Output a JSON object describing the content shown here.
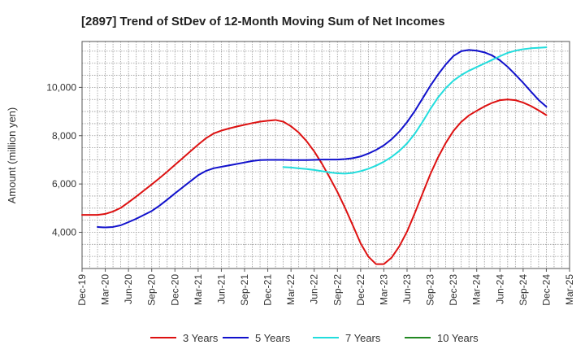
{
  "chart_data": {
    "type": "line",
    "title": "[2897]  Trend of StDev of 12-Month Moving Sum of Net Incomes",
    "xlabel": "",
    "ylabel": "Amount (million yen)",
    "ylim": [
      2500,
      11900
    ],
    "yticks": [
      4000,
      6000,
      8000,
      10000
    ],
    "ytick_labels": [
      "4,000",
      "6,000",
      "8,000",
      "10,000"
    ],
    "x_tick_labels": [
      "Dec-19",
      "Mar-20",
      "Jun-20",
      "Sep-20",
      "Dec-20",
      "Mar-21",
      "Jun-21",
      "Sep-21",
      "Dec-21",
      "Mar-22",
      "Jun-22",
      "Sep-22",
      "Dec-22",
      "Mar-23",
      "Jun-23",
      "Sep-23",
      "Dec-23",
      "Mar-24",
      "Jun-24",
      "Sep-24",
      "Dec-24",
      "Mar-25"
    ],
    "grid": true,
    "legend_position": "bottom",
    "series": [
      {
        "name": "3 Years",
        "color": "#dd1111",
        "points": [
          [
            "Dec-19",
            4720
          ],
          [
            "Jan-20",
            4720
          ],
          [
            "Feb-20",
            4720
          ],
          [
            "Mar-20",
            4760
          ],
          [
            "Apr-20",
            4860
          ],
          [
            "May-20",
            5010
          ],
          [
            "Jun-20",
            5240
          ],
          [
            "Jul-20",
            5480
          ],
          [
            "Aug-20",
            5730
          ],
          [
            "Sep-20",
            5980
          ],
          [
            "Oct-20",
            6240
          ],
          [
            "Nov-20",
            6510
          ],
          [
            "Dec-20",
            6790
          ],
          [
            "Jan-21",
            7070
          ],
          [
            "Feb-21",
            7350
          ],
          [
            "Mar-21",
            7630
          ],
          [
            "Apr-21",
            7890
          ],
          [
            "May-21",
            8090
          ],
          [
            "Jun-21",
            8210
          ],
          [
            "Jul-21",
            8300
          ],
          [
            "Aug-21",
            8380
          ],
          [
            "Sep-21",
            8450
          ],
          [
            "Oct-21",
            8520
          ],
          [
            "Nov-21",
            8580
          ],
          [
            "Dec-21",
            8620
          ],
          [
            "Jan-22",
            8650
          ],
          [
            "Feb-22",
            8580
          ],
          [
            "Mar-22",
            8390
          ],
          [
            "Apr-22",
            8130
          ],
          [
            "May-22",
            7780
          ],
          [
            "Jun-22",
            7350
          ],
          [
            "Jul-22",
            6840
          ],
          [
            "Aug-22",
            6270
          ],
          [
            "Sep-22",
            5670
          ],
          [
            "Oct-22",
            5000
          ],
          [
            "Nov-22",
            4280
          ],
          [
            "Dec-22",
            3540
          ],
          [
            "Jan-23",
            2990
          ],
          [
            "Feb-23",
            2680
          ],
          [
            "Mar-23",
            2680
          ],
          [
            "Apr-23",
            2950
          ],
          [
            "May-23",
            3420
          ],
          [
            "Jun-23",
            4030
          ],
          [
            "Jul-23",
            4790
          ],
          [
            "Aug-23",
            5600
          ],
          [
            "Sep-23",
            6400
          ],
          [
            "Oct-23",
            7100
          ],
          [
            "Nov-23",
            7700
          ],
          [
            "Dec-23",
            8200
          ],
          [
            "Jan-24",
            8570
          ],
          [
            "Feb-24",
            8840
          ],
          [
            "Mar-24",
            9030
          ],
          [
            "Apr-24",
            9210
          ],
          [
            "May-24",
            9360
          ],
          [
            "Jun-24",
            9470
          ],
          [
            "Jul-24",
            9500
          ],
          [
            "Aug-24",
            9470
          ],
          [
            "Sep-24",
            9370
          ],
          [
            "Oct-24",
            9230
          ],
          [
            "Nov-24",
            9050
          ],
          [
            "Dec-24",
            8850
          ]
        ]
      },
      {
        "name": "5 Years",
        "color": "#1111cc",
        "points": [
          [
            "Feb-20",
            4220
          ],
          [
            "Mar-20",
            4200
          ],
          [
            "Apr-20",
            4220
          ],
          [
            "May-20",
            4290
          ],
          [
            "Jun-20",
            4420
          ],
          [
            "Jul-20",
            4560
          ],
          [
            "Aug-20",
            4720
          ],
          [
            "Sep-20",
            4880
          ],
          [
            "Oct-20",
            5100
          ],
          [
            "Nov-20",
            5350
          ],
          [
            "Dec-20",
            5610
          ],
          [
            "Jan-21",
            5860
          ],
          [
            "Feb-21",
            6110
          ],
          [
            "Mar-21",
            6360
          ],
          [
            "Apr-21",
            6540
          ],
          [
            "May-21",
            6650
          ],
          [
            "Jun-21",
            6710
          ],
          [
            "Jul-21",
            6770
          ],
          [
            "Aug-21",
            6830
          ],
          [
            "Sep-21",
            6890
          ],
          [
            "Oct-21",
            6950
          ],
          [
            "Nov-21",
            6990
          ],
          [
            "Dec-21",
            7000
          ],
          [
            "Jan-22",
            7000
          ],
          [
            "Feb-22",
            7000
          ],
          [
            "Mar-22",
            6990
          ],
          [
            "Apr-22",
            6990
          ],
          [
            "May-22",
            6990
          ],
          [
            "Jun-22",
            7000
          ],
          [
            "Jul-22",
            7010
          ],
          [
            "Aug-22",
            7010
          ],
          [
            "Sep-22",
            7010
          ],
          [
            "Oct-22",
            7030
          ],
          [
            "Nov-22",
            7070
          ],
          [
            "Dec-22",
            7140
          ],
          [
            "Jan-23",
            7260
          ],
          [
            "Feb-23",
            7410
          ],
          [
            "Mar-23",
            7600
          ],
          [
            "Apr-23",
            7850
          ],
          [
            "May-23",
            8170
          ],
          [
            "Jun-23",
            8560
          ],
          [
            "Jul-23",
            9020
          ],
          [
            "Aug-23",
            9540
          ],
          [
            "Sep-23",
            10060
          ],
          [
            "Oct-23,10",
            10530
          ],
          [
            "Nov-23",
            10950
          ],
          [
            "Dec-23",
            11300
          ],
          [
            "Jan-24",
            11500
          ],
          [
            "Feb-24",
            11550
          ],
          [
            "Mar-24",
            11520
          ],
          [
            "Apr-24",
            11450
          ],
          [
            "May-24",
            11320
          ],
          [
            "Jun-24",
            11120
          ],
          [
            "Jul-24",
            10850
          ],
          [
            "Aug-24",
            10530
          ],
          [
            "Sep-24",
            10190
          ],
          [
            "Oct-24",
            9830
          ],
          [
            "Nov-24",
            9480
          ],
          [
            "Dec-24",
            9200
          ]
        ]
      },
      {
        "name": "7 Years",
        "color": "#22dddd",
        "points": [
          [
            "Feb-22",
            6700
          ],
          [
            "Mar-22",
            6680
          ],
          [
            "Apr-22",
            6650
          ],
          [
            "May-22",
            6620
          ],
          [
            "Jun-22",
            6580
          ],
          [
            "Jul-22",
            6530
          ],
          [
            "Aug-22",
            6480
          ],
          [
            "Sep-22",
            6440
          ],
          [
            "Oct-22",
            6430
          ],
          [
            "Nov-22",
            6460
          ],
          [
            "Dec-22",
            6530
          ],
          [
            "Jan-23",
            6630
          ],
          [
            "Feb-23",
            6760
          ],
          [
            "Mar-23",
            6920
          ],
          [
            "Apr-23",
            7120
          ],
          [
            "May-23",
            7370
          ],
          [
            "Jun-23",
            7680
          ],
          [
            "Jul-23",
            8080
          ],
          [
            "Aug-23",
            8570
          ],
          [
            "Sep-23",
            9100
          ],
          [
            "Oct-23",
            9580
          ],
          [
            "Nov-23",
            9970
          ],
          [
            "Dec-23",
            10280
          ],
          [
            "Jan-24",
            10510
          ],
          [
            "Feb-24",
            10690
          ],
          [
            "Mar-24",
            10840
          ],
          [
            "Apr-24",
            10990
          ],
          [
            "May-24",
            11140
          ],
          [
            "Jun-24",
            11290
          ],
          [
            "Jul-24",
            11430
          ],
          [
            "Aug-24",
            11520
          ],
          [
            "Sep-24",
            11580
          ],
          [
            "Oct-24",
            11620
          ],
          [
            "Nov-24",
            11640
          ],
          [
            "Dec-24",
            11660
          ]
        ]
      },
      {
        "name": "10 Years",
        "color": "#228822",
        "points": []
      }
    ]
  }
}
